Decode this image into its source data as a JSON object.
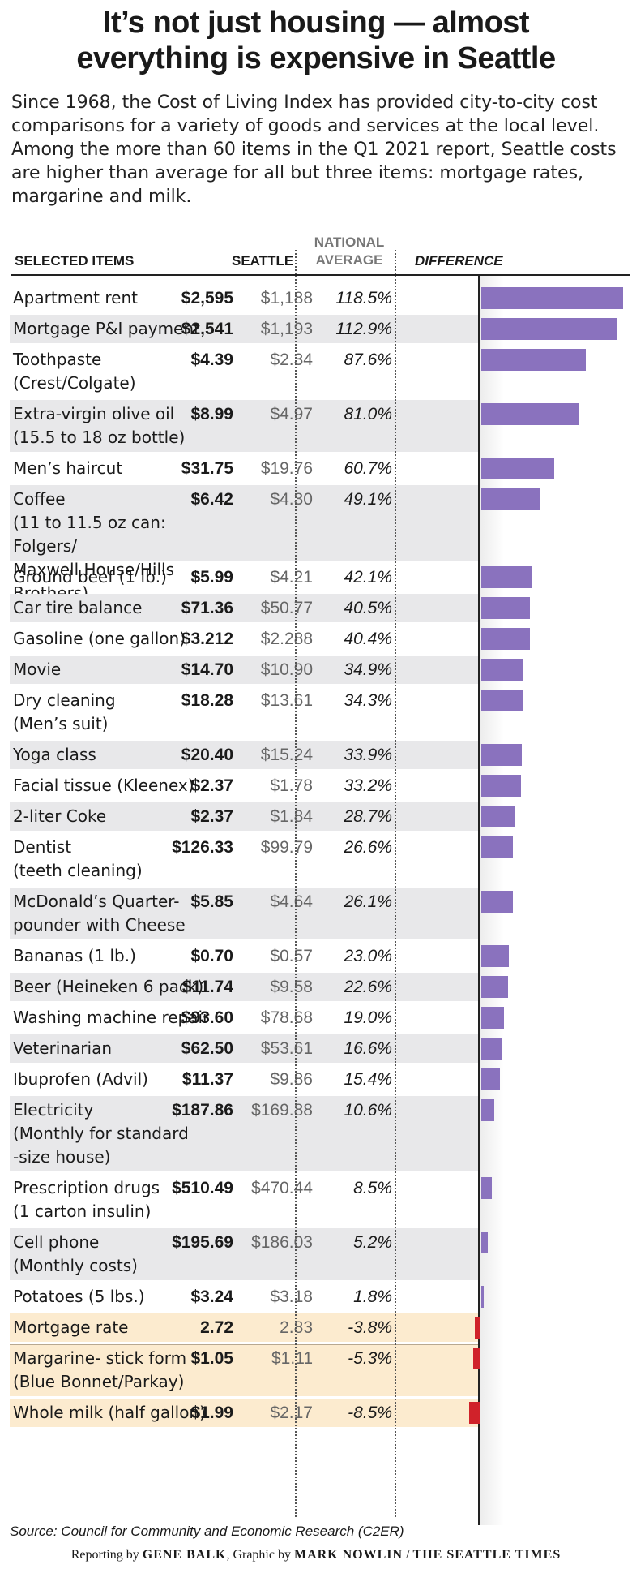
{
  "title_line1": "It’s not just housing — almost",
  "title_line2": "everything is expensive in Seattle",
  "intro": "Since 1968, the Cost of Living Index has provided city-to-city cost comparisons for a variety of goods and services at the local level. Among the more than 60 items in the Q1 2021 report, Seattle costs are higher than average for all but three items: mortgage rates, margarine and milk.",
  "headers": {
    "items": "SELECTED ITEMS",
    "seattle": "SEATTLE",
    "national_line1": "NATIONAL",
    "national_line2": "AVERAGE",
    "difference": "DIFFERENCE"
  },
  "colors": {
    "positive_bar": "#8a72be",
    "negative_bar": "#d0222a",
    "row_gray": "#e8e8ea",
    "row_cream": "#fcebcf"
  },
  "chart_data": {
    "type": "bar",
    "orientation": "horizontal",
    "unit": "percent difference",
    "rows": [
      {
        "item": [
          "Apartment rent"
        ],
        "seattle": "$2,595",
        "national": "$1,188",
        "diff_label": "118.5%",
        "diff": 118.5
      },
      {
        "item": [
          "Mortgage P&I payment"
        ],
        "seattle": "$2,541",
        "national": "$1,193",
        "diff_label": "112.9%",
        "diff": 112.9
      },
      {
        "item": [
          "Toothpaste",
          "(Crest/Colgate)"
        ],
        "seattle": "$4.39",
        "national": "$2.34",
        "diff_label": "87.6%",
        "diff": 87.6
      },
      {
        "item": [
          "Extra-virgin olive oil",
          "(15.5 to 18 oz bottle)"
        ],
        "seattle": "$8.99",
        "national": "$4.97",
        "diff_label": "81.0%",
        "diff": 81.0
      },
      {
        "item": [
          "Men’s haircut"
        ],
        "seattle": "$31.75",
        "national": "$19.76",
        "diff_label": "60.7%",
        "diff": 60.7
      },
      {
        "item": [
          "Coffee",
          "(11 to 11.5 oz can: Folgers/",
          "Maxwell House/Hills Brothers)"
        ],
        "seattle": "$6.42",
        "national": "$4.30",
        "diff_label": "49.1%",
        "diff": 49.1
      },
      {
        "item": [
          "Ground beef (1 lb.)"
        ],
        "seattle": "$5.99",
        "national": "$4.21",
        "diff_label": "42.1%",
        "diff": 42.1
      },
      {
        "item": [
          "Car tire balance"
        ],
        "seattle": "$71.36",
        "national": "$50.77",
        "diff_label": "40.5%",
        "diff": 40.5
      },
      {
        "item": [
          "Gasoline (one gallon)"
        ],
        "seattle": "$3.212",
        "national": "$2.288",
        "diff_label": "40.4%",
        "diff": 40.4
      },
      {
        "item": [
          "Movie"
        ],
        "seattle": "$14.70",
        "national": "$10.90",
        "diff_label": "34.9%",
        "diff": 34.9
      },
      {
        "item": [
          "Dry cleaning",
          "(Men’s suit)"
        ],
        "seattle": "$18.28",
        "national": "$13.61",
        "diff_label": "34.3%",
        "diff": 34.3
      },
      {
        "item": [
          "Yoga class"
        ],
        "seattle": "$20.40",
        "national": "$15.24",
        "diff_label": "33.9%",
        "diff": 33.9
      },
      {
        "item": [
          "Facial tissue (Kleenex)"
        ],
        "seattle": "$2.37",
        "national": "$1.78",
        "diff_label": "33.2%",
        "diff": 33.2
      },
      {
        "item": [
          "2-liter Coke"
        ],
        "seattle": "$2.37",
        "national": "$1.84",
        "diff_label": "28.7%",
        "diff": 28.7
      },
      {
        "item": [
          "Dentist",
          "(teeth cleaning)"
        ],
        "seattle": "$126.33",
        "national": "$99.79",
        "diff_label": "26.6%",
        "diff": 26.6
      },
      {
        "item": [
          "McDonald’s Quarter-",
          "pounder with Cheese"
        ],
        "seattle": "$5.85",
        "national": "$4.64",
        "diff_label": "26.1%",
        "diff": 26.1
      },
      {
        "item": [
          "Bananas  (1 lb.)"
        ],
        "seattle": "$0.70",
        "national": "$0.57",
        "diff_label": "23.0%",
        "diff": 23.0
      },
      {
        "item": [
          "Beer (Heineken 6 pack)"
        ],
        "seattle": "$11.74",
        "national": "$9.58",
        "diff_label": "22.6%",
        "diff": 22.6
      },
      {
        "item": [
          "Washing machine repair"
        ],
        "seattle": "$93.60",
        "national": "$78.68",
        "diff_label": "19.0%",
        "diff": 19.0
      },
      {
        "item": [
          "Veterinarian"
        ],
        "seattle": "$62.50",
        "national": "$53.61",
        "diff_label": "16.6%",
        "diff": 16.6
      },
      {
        "item": [
          "Ibuprofen (Advil)"
        ],
        "seattle": "$11.37",
        "national": "$9.86",
        "diff_label": "15.4%",
        "diff": 15.4
      },
      {
        "item": [
          "Electricity",
          "(Monthly for standard",
          "-size house)"
        ],
        "seattle": "$187.86",
        "national": "$169.88",
        "diff_label": "10.6%",
        "diff": 10.6
      },
      {
        "item": [
          "Prescription drugs",
          "(1 carton insulin)"
        ],
        "seattle": "$510.49",
        "national": "$470.44",
        "diff_label": "8.5%",
        "diff": 8.5
      },
      {
        "item": [
          "Cell phone",
          "(Monthly costs)"
        ],
        "seattle": "$195.69",
        "national": "$186.03",
        "diff_label": "5.2%",
        "diff": 5.2
      },
      {
        "item": [
          "Potatoes  (5 lbs.)"
        ],
        "seattle": "$3.24",
        "national": "$3.18",
        "diff_label": "1.8%",
        "diff": 1.8
      },
      {
        "item": [
          "Mortgage rate"
        ],
        "seattle": "2.72",
        "national": "2.83",
        "diff_label": "-3.8%",
        "diff": -3.8
      },
      {
        "item": [
          "Margarine- stick form",
          "(Blue Bonnet/Parkay)"
        ],
        "seattle": "$1.05",
        "national": "$1.11",
        "diff_label": "-5.3%",
        "diff": -5.3
      },
      {
        "item": [
          "Whole milk (half gallon)"
        ],
        "seattle": "$1.99",
        "national": "$2.17",
        "diff_label": "-8.5%",
        "diff": -8.5
      }
    ]
  },
  "source": "Source: Council for Community and Economic Research (C2ER)",
  "credit": {
    "prefix": "Reporting by ",
    "reporter": "GENE BALK",
    "middle": ", Graphic by ",
    "graphic": "MARK NOWLIN",
    "sep": " / ",
    "outlet": "THE SEATTLE TIMES"
  }
}
